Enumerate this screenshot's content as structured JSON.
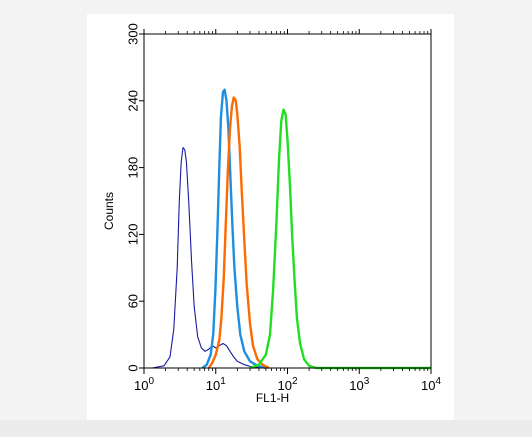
{
  "chart_data": {
    "type": "line",
    "xlabel": "FL1-H",
    "ylabel": "Counts",
    "x_scale": "log",
    "xlim": [
      1,
      10000
    ],
    "ylim": [
      0,
      300
    ],
    "x_ticks": [
      {
        "value": 1,
        "base": "10",
        "exp": "0"
      },
      {
        "value": 10,
        "base": "10",
        "exp": "1"
      },
      {
        "value": 100,
        "base": "10",
        "exp": "2"
      },
      {
        "value": 1000,
        "base": "10",
        "exp": "3"
      },
      {
        "value": 10000,
        "base": "10",
        "exp": "4"
      }
    ],
    "y_ticks": [
      "0",
      "60",
      "120",
      "180",
      "240",
      "300"
    ],
    "grid": false,
    "series": [
      {
        "color": "#1a1aa0",
        "points": [
          [
            1.3,
            0
          ],
          [
            1.9,
            2
          ],
          [
            2.3,
            10
          ],
          [
            2.6,
            35
          ],
          [
            2.9,
            90
          ],
          [
            3.1,
            150
          ],
          [
            3.3,
            185
          ],
          [
            3.5,
            198
          ],
          [
            3.7,
            196
          ],
          [
            3.9,
            185
          ],
          [
            4.2,
            150
          ],
          [
            4.6,
            95
          ],
          [
            5.0,
            55
          ],
          [
            5.6,
            28
          ],
          [
            6.3,
            18
          ],
          [
            7.1,
            15
          ],
          [
            8.0,
            17
          ],
          [
            9.0,
            20
          ],
          [
            10.0,
            18
          ],
          [
            11.2,
            20
          ],
          [
            12.6,
            22
          ],
          [
            14.1,
            20
          ],
          [
            15.8,
            15
          ],
          [
            17.8,
            10
          ],
          [
            20,
            6
          ],
          [
            25,
            3
          ],
          [
            32,
            1
          ],
          [
            45,
            0
          ]
        ]
      },
      {
        "color": "#1e8fe0",
        "points": [
          [
            6.5,
            0
          ],
          [
            7.5,
            3
          ],
          [
            8.5,
            12
          ],
          [
            9.2,
            30
          ],
          [
            9.9,
            70
          ],
          [
            10.5,
            120
          ],
          [
            11.2,
            180
          ],
          [
            11.8,
            225
          ],
          [
            12.6,
            248
          ],
          [
            13.3,
            250
          ],
          [
            14.1,
            240
          ],
          [
            15.0,
            215
          ],
          [
            15.8,
            180
          ],
          [
            17.0,
            130
          ],
          [
            18.2,
            90
          ],
          [
            20,
            55
          ],
          [
            22,
            30
          ],
          [
            25,
            15
          ],
          [
            30,
            6
          ],
          [
            38,
            2
          ],
          [
            50,
            0
          ]
        ]
      },
      {
        "color": "#ff6a00",
        "points": [
          [
            8.0,
            0
          ],
          [
            9.0,
            5
          ],
          [
            10.0,
            12
          ],
          [
            11.2,
            25
          ],
          [
            12.0,
            45
          ],
          [
            12.9,
            80
          ],
          [
            13.8,
            130
          ],
          [
            14.8,
            180
          ],
          [
            15.8,
            215
          ],
          [
            16.8,
            235
          ],
          [
            17.8,
            243
          ],
          [
            19.0,
            240
          ],
          [
            20.0,
            228
          ],
          [
            21.5,
            200
          ],
          [
            23,
            160
          ],
          [
            25,
            115
          ],
          [
            27,
            75
          ],
          [
            30,
            40
          ],
          [
            33,
            20
          ],
          [
            38,
            8
          ],
          [
            45,
            3
          ],
          [
            55,
            0
          ]
        ]
      },
      {
        "color": "#22dd22",
        "points": [
          [
            30,
            0
          ],
          [
            40,
            3
          ],
          [
            50,
            12
          ],
          [
            57,
            30
          ],
          [
            63,
            70
          ],
          [
            70,
            130
          ],
          [
            76,
            185
          ],
          [
            82,
            222
          ],
          [
            88,
            232
          ],
          [
            94,
            228
          ],
          [
            100,
            205
          ],
          [
            108,
            165
          ],
          [
            116,
            120
          ],
          [
            125,
            80
          ],
          [
            135,
            45
          ],
          [
            150,
            22
          ],
          [
            170,
            8
          ],
          [
            200,
            2
          ],
          [
            250,
            0
          ],
          [
            10000,
            0
          ]
        ]
      }
    ]
  }
}
